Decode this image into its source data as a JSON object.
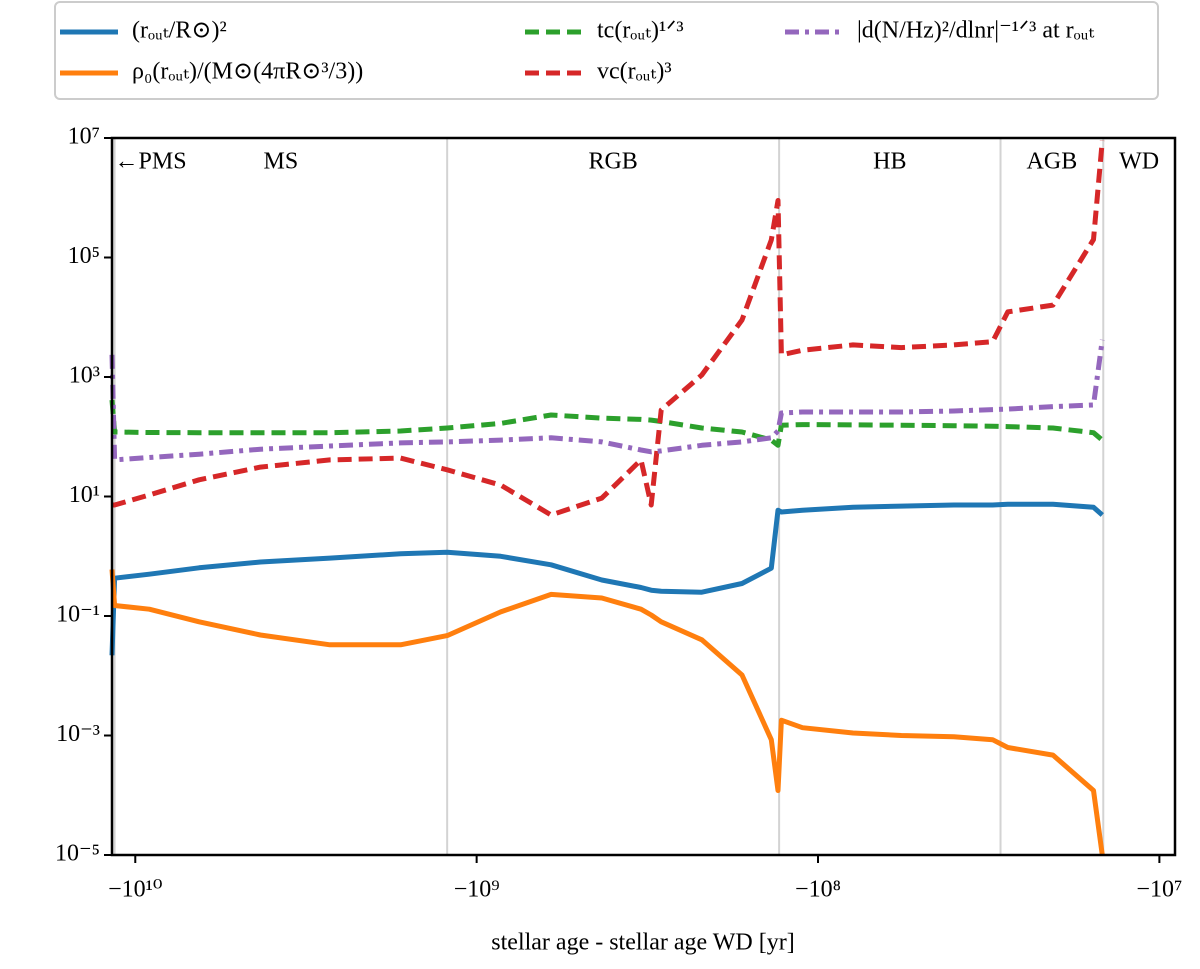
{
  "chart_data": {
    "type": "line",
    "xlabel": "stellar age - stellar age WD [yr]",
    "xscale": "log",
    "yscale": "log",
    "xlim": [
      -11700000000.0,
      -9000000.0
    ],
    "ylim": [
      1e-05,
      10000000.0
    ],
    "xticks": [
      {
        "value": -10000000000.0,
        "label": "−10¹⁰"
      },
      {
        "value": -1000000000.0,
        "label": "−10⁹"
      },
      {
        "value": -100000000.0,
        "label": "−10⁸"
      },
      {
        "value": -10000000.0,
        "label": "−10⁷"
      }
    ],
    "yticks": [
      {
        "value": 1e-05,
        "label": "10⁻⁵"
      },
      {
        "value": 0.001,
        "label": "10⁻³"
      },
      {
        "value": 0.1,
        "label": "10⁻¹"
      },
      {
        "value": 10,
        "label": "10¹"
      },
      {
        "value": 1000,
        "label": "10³"
      },
      {
        "value": 100000,
        "label": "10⁵"
      },
      {
        "value": 10000000,
        "label": "10⁷"
      }
    ],
    "vlines": [
      -11500000000.0,
      -1220000000.0,
      -130000000.0,
      -29200000.0,
      -14600000.0
    ],
    "phases": [
      "←PMS",
      "MS",
      "RGB",
      "HB",
      "AGB",
      "WD"
    ],
    "x": [
      -11700000000.0,
      -11500000000.0,
      -9100000000.0,
      -6500000000.0,
      -4300000000.0,
      -2690000000.0,
      -1670000000.0,
      -1220000000.0,
      -850000000.0,
      -605000000.0,
      -430000000.0,
      -330000000.0,
      -308000000.0,
      -288000000.0,
      -219000000.0,
      -167000000.0,
      -137000000.0,
      -131000000.0,
      -128000000.0,
      -111000000.0,
      -79000000.0,
      -57000000.0,
      -40000000.0,
      -30800000.0,
      -27800000.0,
      -20500000.0,
      -15600000.0,
      -14700000.0
    ],
    "series": [
      {
        "name": "(rₒᵤₜ/R⊙)²",
        "color": "#1f77b4",
        "style": "solid",
        "values": [
          0.022,
          0.43,
          0.5,
          0.64,
          0.8,
          0.93,
          1.1,
          1.17,
          1.0,
          0.72,
          0.4,
          0.3,
          0.27,
          0.26,
          0.25,
          0.35,
          0.63,
          5.9,
          5.5,
          5.9,
          6.6,
          6.9,
          7.2,
          7.2,
          7.4,
          7.4,
          6.6,
          4.9
        ]
      },
      {
        "name": "ρ₀(rₒᵤₜ)/(M⊙(4πR⊙³/3))",
        "color": "#ff7f0e",
        "style": "solid",
        "values": [
          0.6,
          0.15,
          0.13,
          0.08,
          0.048,
          0.033,
          0.033,
          0.047,
          0.117,
          0.23,
          0.2,
          0.13,
          0.104,
          0.08,
          0.04,
          0.0103,
          0.00085,
          0.00012,
          0.0018,
          0.00135,
          0.0011,
          0.001,
          0.00095,
          0.00085,
          0.00063,
          0.00047,
          0.00012,
          1e-05
        ]
      },
      {
        "name": "tc(rₒᵤₜ)¹ᐟ³",
        "color": "#2ca02c",
        "style": "dashed",
        "values": [
          412,
          120,
          118,
          117,
          117,
          117,
          125,
          140,
          167,
          231,
          205,
          195,
          190,
          180,
          140,
          120,
          88,
          72,
          156,
          160,
          158,
          156,
          153,
          150,
          148,
          140,
          117,
          88
        ]
      },
      {
        "name": "vc(rₒᵤₜ)³",
        "color": "#d62728",
        "style": "dashed",
        "values": [
          7.2,
          7.2,
          10.6,
          19,
          31,
          41,
          44,
          28,
          15.5,
          4.9,
          9.4,
          41,
          7.2,
          280,
          1080,
          9000,
          196000,
          900000,
          2350,
          2800,
          3450,
          3100,
          3450,
          3900,
          12300,
          16000,
          200000,
          9000000
        ]
      },
      {
        "name": "|d(N/Hz)²/dlnr|⁻¹ᐟ³ at rₒᵤₜ",
        "color": "#9467bd",
        "style": "dashdot",
        "values": [
          2350,
          41,
          45,
          51,
          62,
          70,
          79,
          82,
          88,
          96,
          82,
          60,
          56,
          58,
          72,
          82,
          96,
          125,
          250,
          260,
          260,
          260,
          270,
          285,
          290,
          320,
          340,
          4200
        ]
      }
    ]
  }
}
